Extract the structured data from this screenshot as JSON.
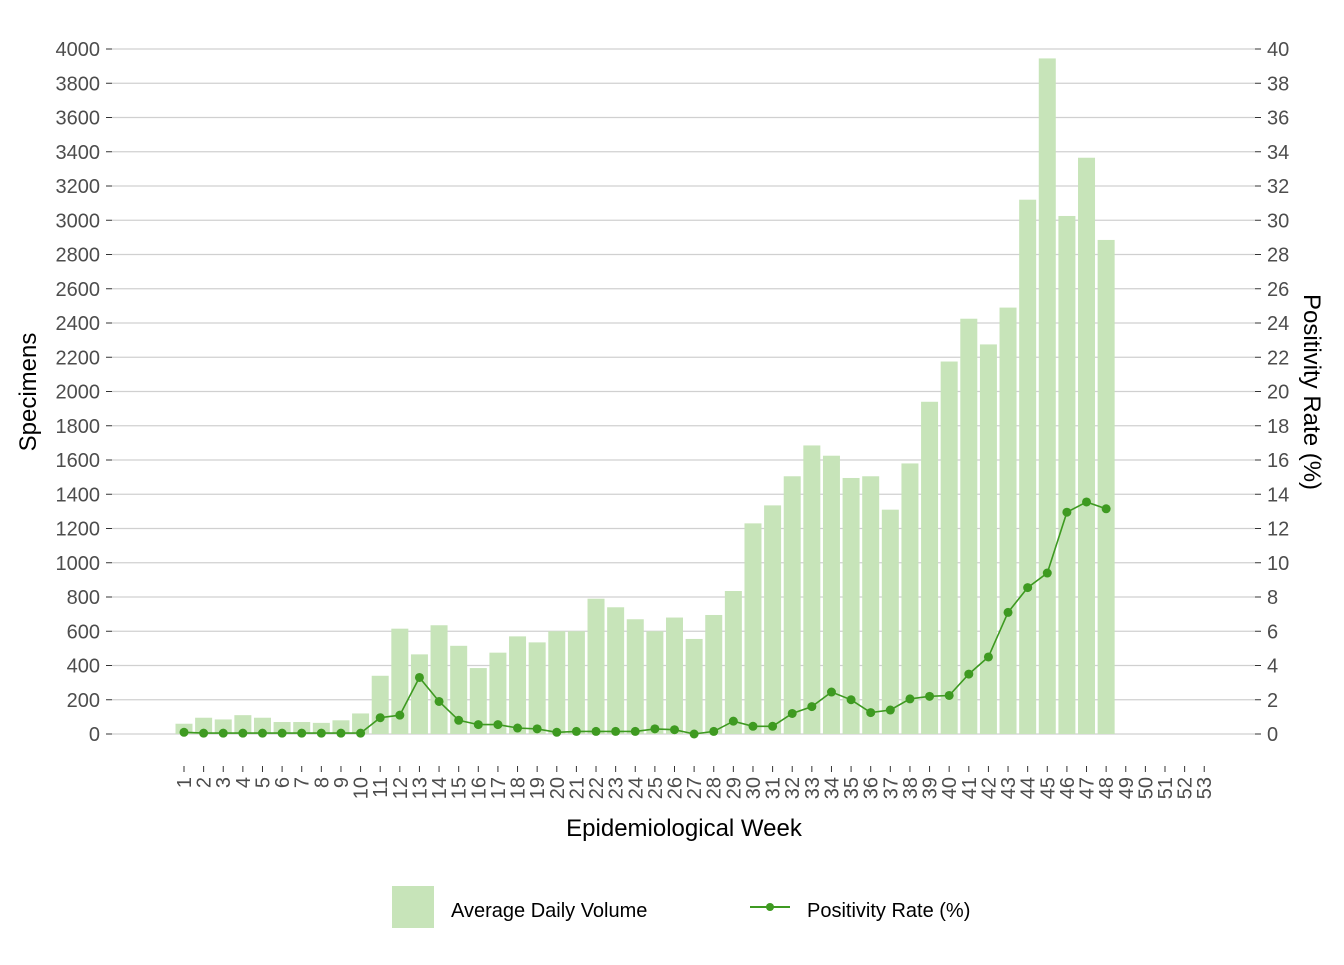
{
  "chart_data": {
    "type": "bar",
    "xlabel": "Epidemiological Week",
    "ylabel": "Specimens",
    "y2label": "Positivity Rate (%)",
    "ylim": [
      0,
      4000
    ],
    "y2lim": [
      0,
      40
    ],
    "ytick_step": 200,
    "y2tick_step": 2,
    "grid": true,
    "legend_position": "bottom",
    "categories": [
      "1",
      "2",
      "3",
      "4",
      "5",
      "6",
      "7",
      "8",
      "9",
      "10",
      "11",
      "12",
      "13",
      "14",
      "15",
      "16",
      "17",
      "18",
      "19",
      "20",
      "21",
      "22",
      "23",
      "24",
      "25",
      "26",
      "27",
      "28",
      "29",
      "30",
      "31",
      "32",
      "33",
      "34",
      "35",
      "36",
      "37",
      "38",
      "39",
      "40",
      "41",
      "42",
      "43",
      "44",
      "45",
      "46",
      "47",
      "48",
      "49",
      "50",
      "51",
      "52",
      "53"
    ],
    "series": [
      {
        "name": "Average Daily Volume",
        "kind": "bar",
        "axis": "left",
        "color": "#c7e4b9",
        "values": [
          60,
          95,
          85,
          110,
          95,
          70,
          70,
          65,
          80,
          120,
          340,
          615,
          465,
          635,
          515,
          385,
          475,
          570,
          535,
          600,
          600,
          790,
          740,
          670,
          600,
          680,
          555,
          695,
          835,
          1230,
          1335,
          1505,
          1685,
          1625,
          1495,
          1505,
          1310,
          1580,
          1940,
          2175,
          2425,
          2275,
          2490,
          3120,
          3945,
          3025,
          3365,
          2885,
          null,
          null,
          null,
          null,
          null
        ]
      },
      {
        "name": "Positivity Rate (%)",
        "kind": "line",
        "axis": "right",
        "color": "#3e9a21",
        "values": [
          0.1,
          0.05,
          0.05,
          0.05,
          0.05,
          0.05,
          0.05,
          0.05,
          0.05,
          0.05,
          0.95,
          1.1,
          3.3,
          1.9,
          0.8,
          0.55,
          0.55,
          0.35,
          0.3,
          0.1,
          0.15,
          0.15,
          0.15,
          0.15,
          0.3,
          0.25,
          0.0,
          0.15,
          0.75,
          0.45,
          0.45,
          1.2,
          1.6,
          2.45,
          2.0,
          1.25,
          1.4,
          2.05,
          2.2,
          2.25,
          3.5,
          4.5,
          7.1,
          8.55,
          9.4,
          12.95,
          13.55,
          13.15,
          null,
          null,
          null,
          null,
          null
        ]
      }
    ]
  }
}
